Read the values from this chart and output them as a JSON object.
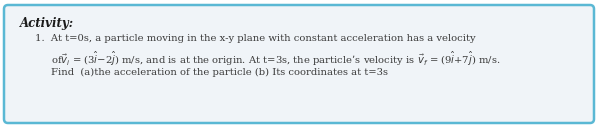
{
  "title": "Activity:",
  "line1": "1.  At t=0s, a particle moving in the x-y plane with constant acceleration has a velocity",
  "line2": "of$\\vec{v}_i$ = (3$\\hat{i}$−2$\\hat{j}$) m/s, and is at the origin. At t=3s, the particle’s velocity is $\\vec{v}_f$ = (9$\\hat{i}$+7$\\hat{j}$) m/s.",
  "line3": "Find  (a)the acceleration of the particle (b) Its coordinates at t=3s",
  "outer_bg": "#ffffff",
  "box_bg": "#f0f4f8",
  "border_color": "#5ab8d4",
  "text_color": "#3a3a3a",
  "title_color": "#1a1a1a",
  "title_fontsize": 8.5,
  "body_fontsize": 7.2,
  "border_linewidth": 1.8
}
